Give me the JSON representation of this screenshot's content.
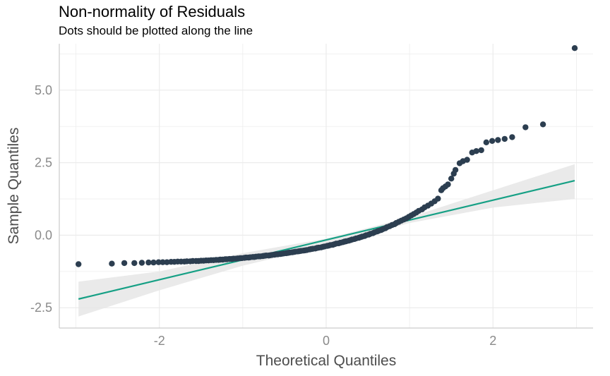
{
  "chart_data": {
    "type": "scatter",
    "title": "Non-normality of Residuals",
    "subtitle": "Dots should be plotted along the line",
    "xlabel": "Theoretical Quantiles",
    "ylabel": "Sample Quantiles",
    "xlim": [
      -3.2,
      3.2
    ],
    "ylim": [
      -3.2,
      6.6
    ],
    "x_ticks": [
      -2,
      0,
      2
    ],
    "x_tick_labels": [
      "-2",
      "0",
      "2"
    ],
    "y_ticks": [
      -2.5,
      0.0,
      2.5,
      5.0
    ],
    "y_tick_labels": [
      "-2.5",
      "0.0",
      "2.5",
      "5.0"
    ],
    "grid": true,
    "colors": {
      "points": "#2c3e50",
      "line": "#16a085",
      "band": "#e6e6e6",
      "grid": "#ebebeb",
      "axis": "#cccccc"
    },
    "points": [
      [
        -2.97,
        -1.0
      ],
      [
        -2.57,
        -0.98
      ],
      [
        -2.42,
        -0.96
      ],
      [
        -2.3,
        -0.96
      ],
      [
        -2.21,
        -0.95
      ],
      [
        -2.13,
        -0.94
      ],
      [
        -2.07,
        -0.94
      ],
      [
        -2.01,
        -0.93
      ],
      [
        -1.96,
        -0.93
      ],
      [
        -1.91,
        -0.93
      ],
      [
        -1.86,
        -0.92
      ],
      [
        -1.82,
        -0.92
      ],
      [
        -1.78,
        -0.91
      ],
      [
        -1.74,
        -0.91
      ],
      [
        -1.7,
        -0.91
      ],
      [
        -1.67,
        -0.9
      ],
      [
        -1.63,
        -0.9
      ],
      [
        -1.6,
        -0.89
      ],
      [
        -1.56,
        -0.89
      ],
      [
        -1.53,
        -0.89
      ],
      [
        -1.5,
        -0.88
      ],
      [
        -1.47,
        -0.88
      ],
      [
        -1.44,
        -0.87
      ],
      [
        -1.41,
        -0.87
      ],
      [
        -1.38,
        -0.86
      ],
      [
        -1.35,
        -0.86
      ],
      [
        -1.32,
        -0.85
      ],
      [
        -1.29,
        -0.85
      ],
      [
        -1.27,
        -0.84
      ],
      [
        -1.24,
        -0.84
      ],
      [
        -1.21,
        -0.83
      ],
      [
        -1.19,
        -0.83
      ],
      [
        -1.16,
        -0.82
      ],
      [
        -1.13,
        -0.82
      ],
      [
        -1.11,
        -0.81
      ],
      [
        -1.08,
        -0.81
      ],
      [
        -1.06,
        -0.8
      ],
      [
        -1.03,
        -0.79
      ],
      [
        -1.01,
        -0.79
      ],
      [
        -0.98,
        -0.78
      ],
      [
        -0.96,
        -0.77
      ],
      [
        -0.93,
        -0.77
      ],
      [
        -0.91,
        -0.76
      ],
      [
        -0.88,
        -0.75
      ],
      [
        -0.86,
        -0.75
      ],
      [
        -0.84,
        -0.74
      ],
      [
        -0.81,
        -0.73
      ],
      [
        -0.79,
        -0.73
      ],
      [
        -0.76,
        -0.72
      ],
      [
        -0.74,
        -0.71
      ],
      [
        -0.72,
        -0.7
      ],
      [
        -0.69,
        -0.7
      ],
      [
        -0.67,
        -0.69
      ],
      [
        -0.65,
        -0.68
      ],
      [
        -0.62,
        -0.67
      ],
      [
        -0.6,
        -0.66
      ],
      [
        -0.58,
        -0.66
      ],
      [
        -0.55,
        -0.65
      ],
      [
        -0.53,
        -0.64
      ],
      [
        -0.51,
        -0.63
      ],
      [
        -0.48,
        -0.62
      ],
      [
        -0.46,
        -0.61
      ],
      [
        -0.44,
        -0.6
      ],
      [
        -0.41,
        -0.59
      ],
      [
        -0.39,
        -0.58
      ],
      [
        -0.37,
        -0.57
      ],
      [
        -0.34,
        -0.56
      ],
      [
        -0.32,
        -0.55
      ],
      [
        -0.3,
        -0.54
      ],
      [
        -0.27,
        -0.53
      ],
      [
        -0.25,
        -0.52
      ],
      [
        -0.23,
        -0.51
      ],
      [
        -0.2,
        -0.49
      ],
      [
        -0.18,
        -0.48
      ],
      [
        -0.16,
        -0.47
      ],
      [
        -0.13,
        -0.46
      ],
      [
        -0.11,
        -0.44
      ],
      [
        -0.09,
        -0.43
      ],
      [
        -0.06,
        -0.42
      ],
      [
        -0.04,
        -0.4
      ],
      [
        -0.02,
        -0.39
      ],
      [
        0.01,
        -0.37
      ],
      [
        0.03,
        -0.36
      ],
      [
        0.05,
        -0.34
      ],
      [
        0.08,
        -0.33
      ],
      [
        0.1,
        -0.31
      ],
      [
        0.12,
        -0.29
      ],
      [
        0.15,
        -0.28
      ],
      [
        0.17,
        -0.26
      ],
      [
        0.2,
        -0.24
      ],
      [
        0.22,
        -0.22
      ],
      [
        0.24,
        -0.21
      ],
      [
        0.27,
        -0.19
      ],
      [
        0.29,
        -0.17
      ],
      [
        0.31,
        -0.15
      ],
      [
        0.34,
        -0.13
      ],
      [
        0.36,
        -0.11
      ],
      [
        0.39,
        -0.09
      ],
      [
        0.41,
        -0.07
      ],
      [
        0.43,
        -0.05
      ],
      [
        0.46,
        -0.03
      ],
      [
        0.48,
        0.0
      ],
      [
        0.51,
        0.02
      ],
      [
        0.53,
        0.05
      ],
      [
        0.56,
        0.07
      ],
      [
        0.58,
        0.1
      ],
      [
        0.61,
        0.13
      ],
      [
        0.63,
        0.15
      ],
      [
        0.66,
        0.18
      ],
      [
        0.68,
        0.21
      ],
      [
        0.71,
        0.24
      ],
      [
        0.73,
        0.28
      ],
      [
        0.76,
        0.31
      ],
      [
        0.79,
        0.35
      ],
      [
        0.82,
        0.38
      ],
      [
        0.84,
        0.42
      ],
      [
        0.87,
        0.46
      ],
      [
        0.9,
        0.5
      ],
      [
        0.93,
        0.54
      ],
      [
        0.96,
        0.58
      ],
      [
        0.99,
        0.63
      ],
      [
        1.02,
        0.68
      ],
      [
        1.05,
        0.73
      ],
      [
        1.08,
        0.78
      ],
      [
        1.11,
        0.84
      ],
      [
        1.15,
        0.89
      ],
      [
        1.18,
        0.96
      ],
      [
        1.22,
        1.02
      ],
      [
        1.26,
        1.09
      ],
      [
        1.3,
        1.17
      ],
      [
        1.34,
        1.26
      ],
      [
        1.38,
        1.55
      ],
      [
        1.4,
        1.62
      ],
      [
        1.43,
        1.68
      ],
      [
        1.46,
        1.75
      ],
      [
        1.5,
        1.95
      ],
      [
        1.53,
        2.12
      ],
      [
        1.55,
        2.25
      ],
      [
        1.6,
        2.48
      ],
      [
        1.64,
        2.55
      ],
      [
        1.69,
        2.6
      ],
      [
        1.75,
        2.85
      ],
      [
        1.8,
        2.9
      ],
      [
        1.86,
        2.93
      ],
      [
        1.92,
        3.2
      ],
      [
        1.99,
        3.25
      ],
      [
        2.06,
        3.28
      ],
      [
        2.14,
        3.32
      ],
      [
        2.23,
        3.38
      ],
      [
        2.39,
        3.72
      ],
      [
        2.6,
        3.82
      ],
      [
        2.98,
        6.45
      ]
    ],
    "reference_line": {
      "x": [
        -2.97,
        2.98
      ],
      "y": [
        -2.2,
        1.88
      ]
    },
    "confidence_band": {
      "x": [
        -2.97,
        -2.0,
        -1.0,
        0.0,
        1.0,
        2.0,
        2.98
      ],
      "upper": [
        -1.6,
        -1.25,
        -0.62,
        -0.12,
        0.62,
        1.55,
        2.45
      ],
      "lower": [
        -2.8,
        -1.9,
        -1.05,
        -0.36,
        0.42,
        0.95,
        1.25
      ]
    }
  }
}
